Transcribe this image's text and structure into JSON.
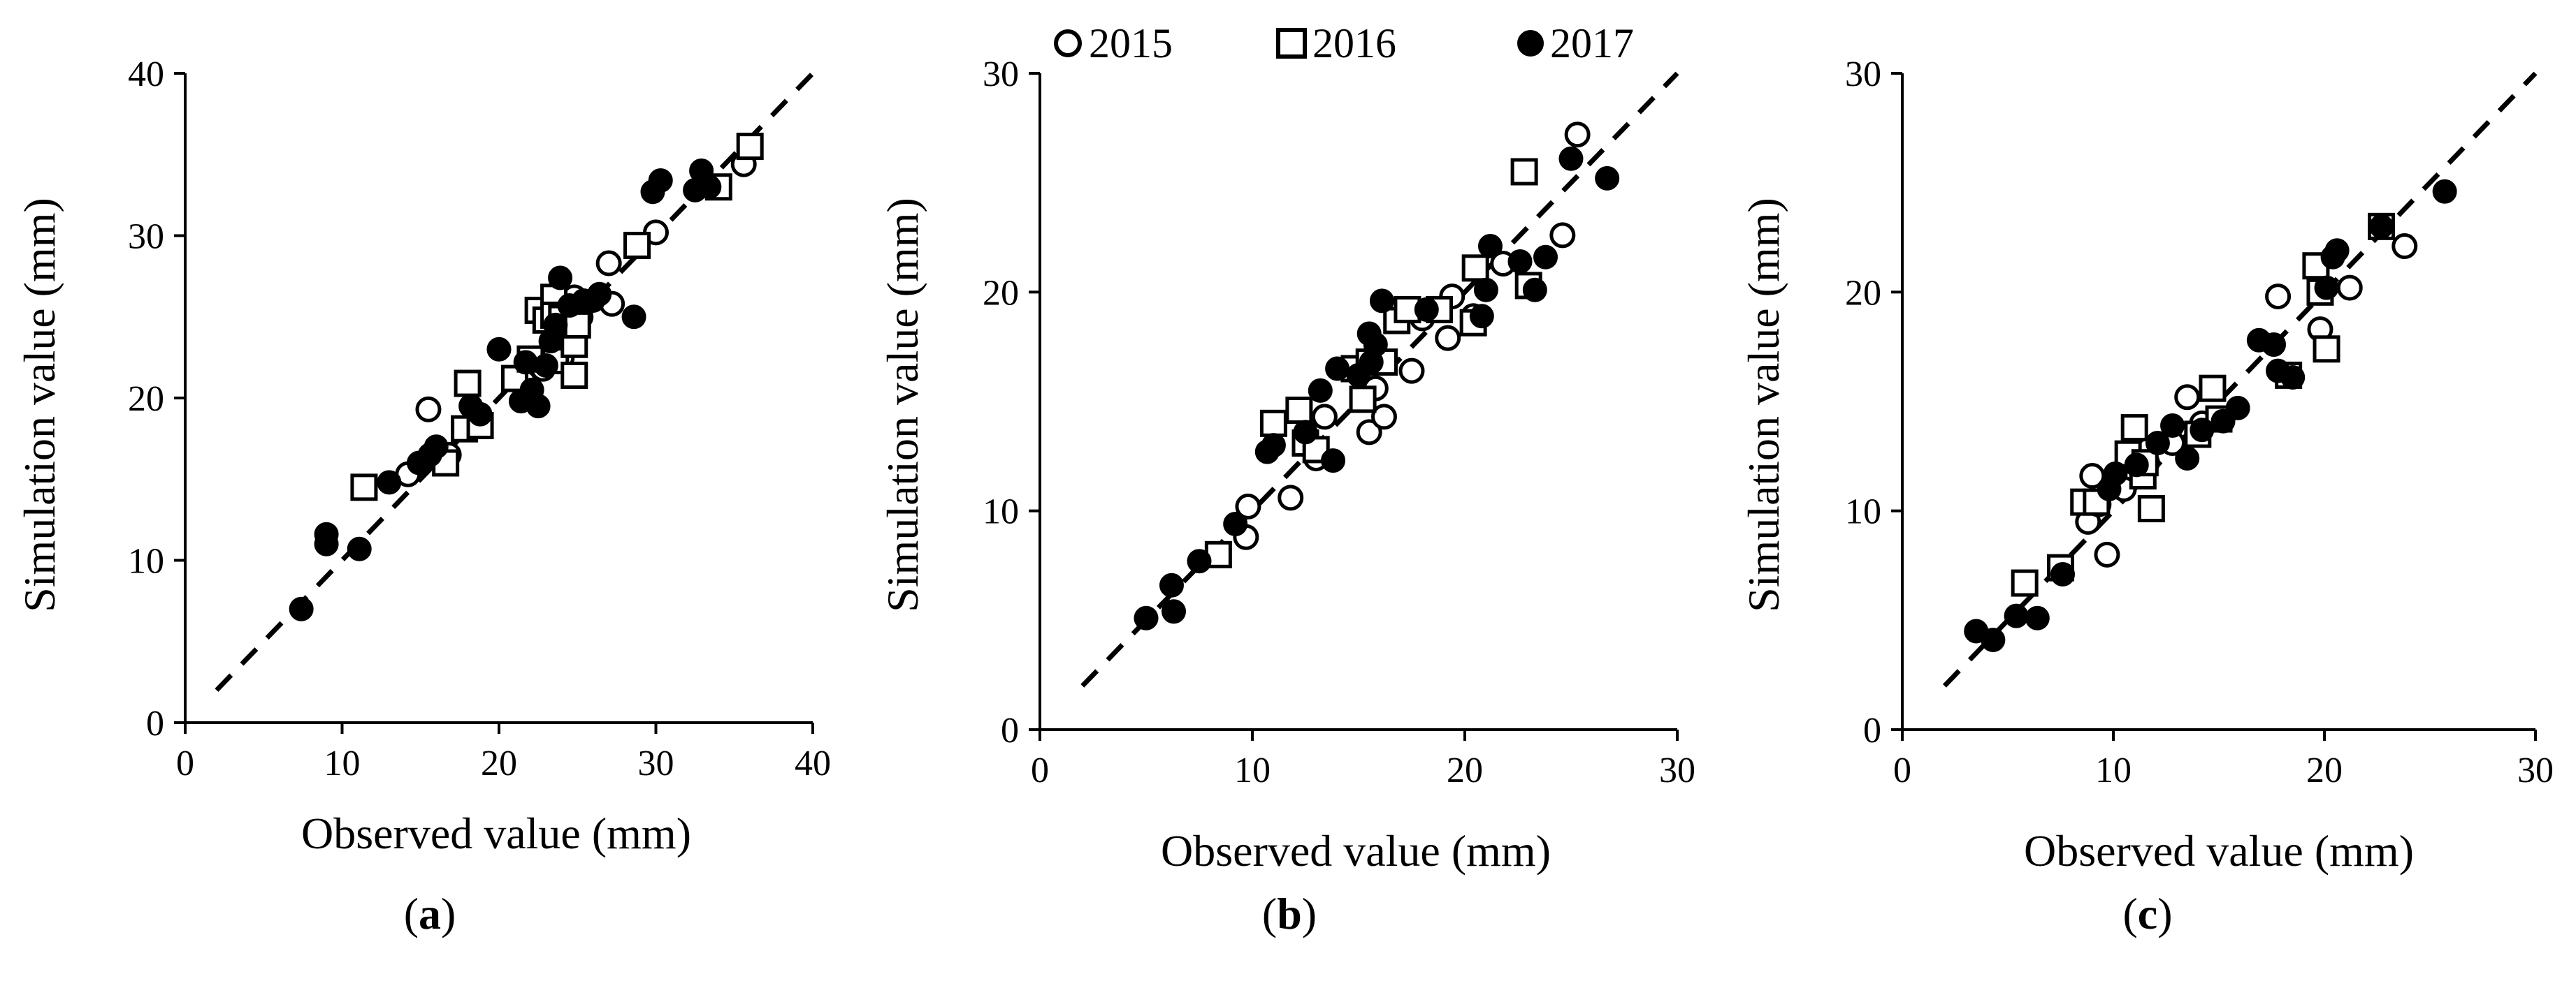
{
  "legend": {
    "entries": [
      {
        "label": "2015",
        "marker": "open-circle"
      },
      {
        "label": "2016",
        "marker": "open-square"
      },
      {
        "label": "2017",
        "marker": "filled-circle"
      }
    ]
  },
  "colors": {
    "marker": "#000000",
    "background": "#ffffff"
  },
  "chart_data": [
    {
      "type": "scatter",
      "panel_label": "(a)",
      "panel_letter": "a",
      "xlabel": "Observed value (mm)",
      "ylabel": "Simulation value (mm)",
      "xlim": [
        0,
        40
      ],
      "ylim": [
        0,
        40
      ],
      "xticks": [
        "0",
        "10",
        "20",
        "30",
        "40"
      ],
      "yticks": [
        "0",
        "10",
        "20",
        "30",
        "40"
      ],
      "reference_line": {
        "style": "dashed",
        "x": [
          2,
          40
        ],
        "y": [
          2,
          40
        ]
      },
      "series": [
        {
          "name": "2015",
          "marker": "open-circle",
          "points": [
            [
              14.2,
              15.3
            ],
            [
              15.5,
              19.3
            ],
            [
              16.8,
              16.5
            ],
            [
              18.5,
              18.5
            ],
            [
              21.6,
              21.0
            ],
            [
              22.8,
              21.8
            ],
            [
              23.5,
              24.5
            ],
            [
              24.8,
              26.2
            ],
            [
              25.2,
              25.0
            ],
            [
              27.2,
              25.8
            ],
            [
              27.0,
              28.3
            ],
            [
              30.0,
              30.2
            ],
            [
              35.6,
              34.4
            ],
            [
              24.0,
              22.5
            ]
          ]
        },
        {
          "name": "2016",
          "marker": "open-square",
          "points": [
            [
              11.4,
              14.5
            ],
            [
              16.6,
              16.0
            ],
            [
              17.8,
              18.1
            ],
            [
              18.0,
              20.9
            ],
            [
              18.8,
              18.3
            ],
            [
              21.0,
              21.2
            ],
            [
              22.0,
              22.4
            ],
            [
              22.5,
              25.4
            ],
            [
              23.0,
              24.8
            ],
            [
              23.5,
              26.2
            ],
            [
              23.5,
              25.1
            ],
            [
              23.6,
              22.3
            ],
            [
              24.0,
              24.9
            ],
            [
              24.8,
              21.4
            ],
            [
              24.8,
              23.3
            ],
            [
              25.0,
              24.5
            ],
            [
              28.8,
              29.4
            ],
            [
              34.0,
              33.0
            ],
            [
              36.0,
              35.5
            ]
          ]
        },
        {
          "name": "2017",
          "marker": "filled-circle",
          "points": [
            [
              7.4,
              7.0
            ],
            [
              9.0,
              11.6
            ],
            [
              9.0,
              11.0
            ],
            [
              11.1,
              10.7
            ],
            [
              13.0,
              14.8
            ],
            [
              14.9,
              16.0
            ],
            [
              15.6,
              16.5
            ],
            [
              16.0,
              17.0
            ],
            [
              18.2,
              19.5
            ],
            [
              18.8,
              19.0
            ],
            [
              20.0,
              23.0
            ],
            [
              21.4,
              19.8
            ],
            [
              21.7,
              22.2
            ],
            [
              22.1,
              20.5
            ],
            [
              22.5,
              19.5
            ],
            [
              23.0,
              22.0
            ],
            [
              23.3,
              23.5
            ],
            [
              23.6,
              24.5
            ],
            [
              23.9,
              27.4
            ],
            [
              24.5,
              25.7
            ],
            [
              25.4,
              26.0
            ],
            [
              26.0,
              26.0
            ],
            [
              26.4,
              26.4
            ],
            [
              28.6,
              25.0
            ],
            [
              29.8,
              32.7
            ],
            [
              30.3,
              33.4
            ],
            [
              32.5,
              32.8
            ],
            [
              32.9,
              34.0
            ],
            [
              33.4,
              33.0
            ]
          ]
        }
      ]
    },
    {
      "type": "scatter",
      "panel_label": "(b)",
      "panel_letter": "b",
      "xlabel": "Observed value (mm)",
      "ylabel": "Simulation value (mm)",
      "xlim": [
        0,
        30
      ],
      "ylim": [
        0,
        30
      ],
      "xticks": [
        "0",
        "10",
        "20",
        "30"
      ],
      "yticks": [
        "0",
        "10",
        "20",
        "30"
      ],
      "reference_line": {
        "style": "dashed",
        "x": [
          2,
          30
        ],
        "y": [
          2,
          30
        ]
      },
      "series": [
        {
          "name": "2015",
          "marker": "open-circle",
          "points": [
            [
              9.7,
              8.8
            ],
            [
              9.8,
              10.2
            ],
            [
              11.8,
              10.6
            ],
            [
              13.0,
              12.4
            ],
            [
              13.4,
              14.3
            ],
            [
              15.5,
              13.6
            ],
            [
              15.8,
              15.6
            ],
            [
              16.2,
              14.3
            ],
            [
              17.5,
              16.4
            ],
            [
              18.0,
              18.8
            ],
            [
              19.2,
              17.9
            ],
            [
              19.4,
              19.8
            ],
            [
              20.4,
              18.9
            ],
            [
              21.8,
              21.3
            ],
            [
              24.6,
              22.6
            ],
            [
              25.3,
              27.2
            ]
          ]
        },
        {
          "name": "2016",
          "marker": "open-square",
          "points": [
            [
              8.4,
              8.0
            ],
            [
              11.0,
              14.0
            ],
            [
              12.2,
              14.6
            ],
            [
              12.5,
              13.1
            ],
            [
              13.0,
              12.8
            ],
            [
              14.8,
              16.5
            ],
            [
              15.2,
              15.1
            ],
            [
              15.5,
              16.8
            ],
            [
              16.2,
              16.8
            ],
            [
              16.8,
              18.7
            ],
            [
              17.3,
              19.2
            ],
            [
              18.8,
              19.2
            ],
            [
              20.4,
              18.6
            ],
            [
              20.5,
              21.1
            ],
            [
              22.8,
              25.5
            ],
            [
              23.0,
              20.3
            ]
          ]
        },
        {
          "name": "2017",
          "marker": "filled-circle",
          "points": [
            [
              5.0,
              5.1
            ],
            [
              6.2,
              6.6
            ],
            [
              6.3,
              5.4
            ],
            [
              7.5,
              7.7
            ],
            [
              9.2,
              9.4
            ],
            [
              10.7,
              12.7
            ],
            [
              11.0,
              13.0
            ],
            [
              12.5,
              13.6
            ],
            [
              13.2,
              15.5
            ],
            [
              13.8,
              12.3
            ],
            [
              14.0,
              16.5
            ],
            [
              15.0,
              16.2
            ],
            [
              15.5,
              18.1
            ],
            [
              15.6,
              16.8
            ],
            [
              15.8,
              17.6
            ],
            [
              16.1,
              19.6
            ],
            [
              18.2,
              19.2
            ],
            [
              20.8,
              18.9
            ],
            [
              21.0,
              20.1
            ],
            [
              21.2,
              22.1
            ],
            [
              22.6,
              21.4
            ],
            [
              23.3,
              20.1
            ],
            [
              23.8,
              21.6
            ],
            [
              25.0,
              26.1
            ],
            [
              26.7,
              25.2
            ]
          ]
        }
      ]
    },
    {
      "type": "scatter",
      "panel_label": "(c)",
      "panel_letter": "c",
      "xlabel": "Observed value (mm)",
      "ylabel": "Simulation value (mm)",
      "xlim": [
        0,
        30
      ],
      "ylim": [
        0,
        30
      ],
      "xticks": [
        "0",
        "10",
        "20",
        "30"
      ],
      "yticks": [
        "0",
        "10",
        "20",
        "30"
      ],
      "reference_line": {
        "style": "dashed",
        "x": [
          2,
          30
        ],
        "y": [
          2,
          30
        ]
      },
      "series": [
        {
          "name": "2015",
          "marker": "open-circle",
          "points": [
            [
              8.8,
              9.5
            ],
            [
              9.0,
              11.6
            ],
            [
              9.3,
              10.3
            ],
            [
              9.7,
              8.0
            ],
            [
              10.5,
              11.0
            ],
            [
              11.0,
              13.6
            ],
            [
              11.6,
              12.2
            ],
            [
              12.8,
              13.1
            ],
            [
              13.5,
              15.2
            ],
            [
              14.2,
              14.0
            ],
            [
              17.8,
              19.8
            ],
            [
              19.8,
              18.3
            ],
            [
              21.2,
              20.2
            ],
            [
              23.8,
              22.1
            ]
          ]
        },
        {
          "name": "2016",
          "marker": "open-square",
          "points": [
            [
              5.8,
              6.7
            ],
            [
              7.5,
              7.4
            ],
            [
              8.6,
              10.4
            ],
            [
              9.2,
              10.4
            ],
            [
              10.7,
              12.6
            ],
            [
              11.0,
              13.8
            ],
            [
              11.4,
              11.6
            ],
            [
              11.5,
              12.2
            ],
            [
              11.8,
              10.1
            ],
            [
              14.0,
              13.5
            ],
            [
              14.7,
              15.6
            ],
            [
              15.0,
              14.2
            ],
            [
              18.3,
              16.2
            ],
            [
              19.6,
              21.2
            ],
            [
              19.8,
              20.0
            ],
            [
              20.1,
              17.4
            ],
            [
              22.7,
              23.0
            ]
          ]
        },
        {
          "name": "2017",
          "marker": "filled-circle",
          "points": [
            [
              3.5,
              4.5
            ],
            [
              4.3,
              4.1
            ],
            [
              5.4,
              5.2
            ],
            [
              6.4,
              5.1
            ],
            [
              7.6,
              7.1
            ],
            [
              9.8,
              11.0
            ],
            [
              10.1,
              11.7
            ],
            [
              11.1,
              12.1
            ],
            [
              12.1,
              13.1
            ],
            [
              12.8,
              13.9
            ],
            [
              13.5,
              12.4
            ],
            [
              14.2,
              13.7
            ],
            [
              15.2,
              14.1
            ],
            [
              15.9,
              14.7
            ],
            [
              16.9,
              17.8
            ],
            [
              17.6,
              17.6
            ],
            [
              17.8,
              16.4
            ],
            [
              18.5,
              16.1
            ],
            [
              20.1,
              20.2
            ],
            [
              20.4,
              21.6
            ],
            [
              20.6,
              21.9
            ],
            [
              22.7,
              23.0
            ],
            [
              25.7,
              24.6
            ]
          ]
        }
      ]
    }
  ]
}
